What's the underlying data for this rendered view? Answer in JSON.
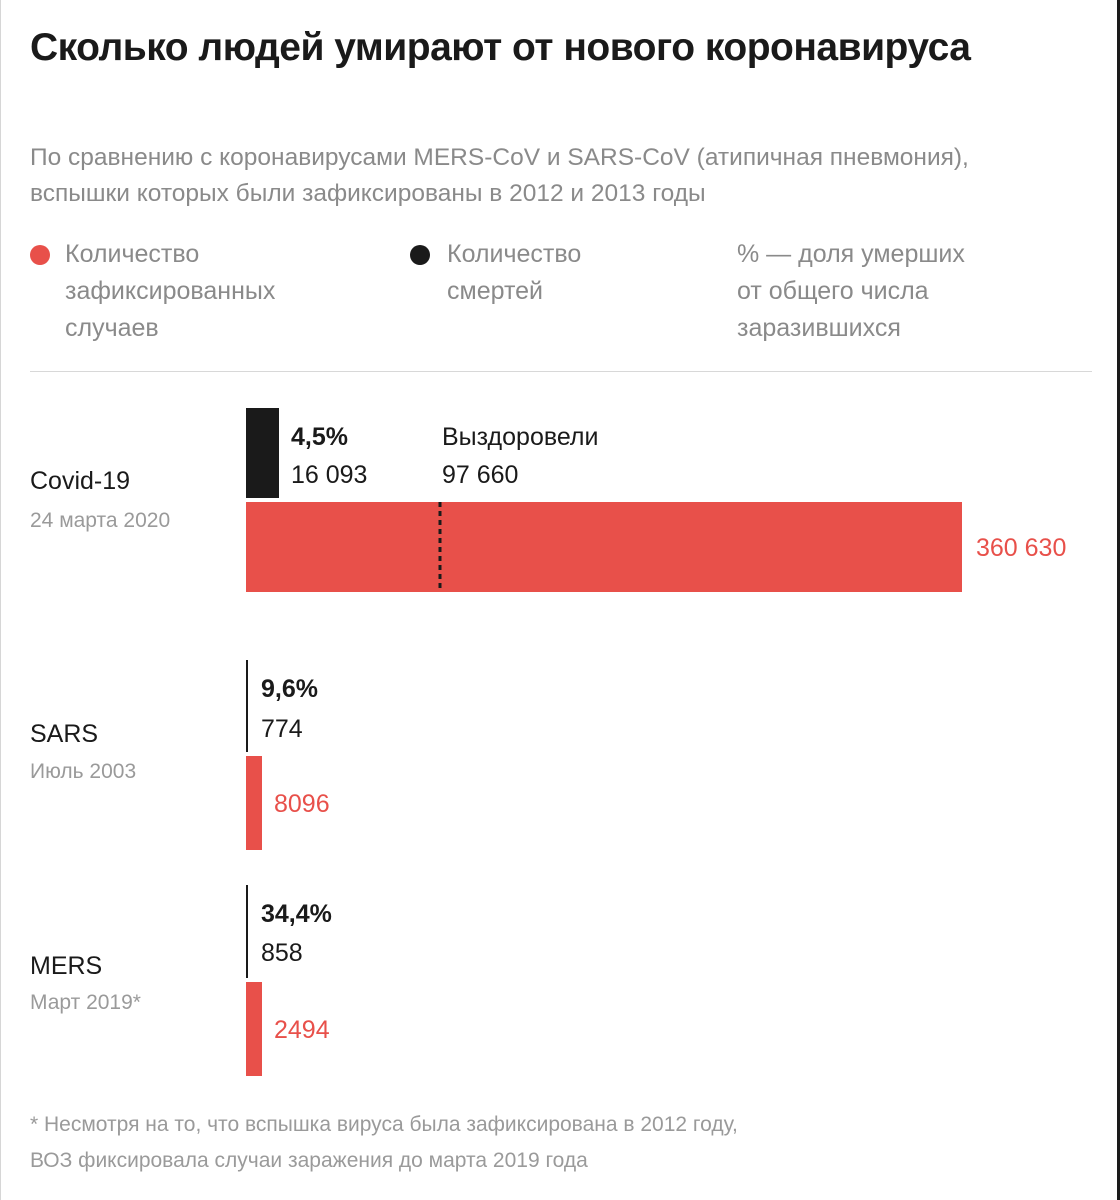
{
  "title": "Сколько людей умирают от нового коронавируса",
  "subtitle": "По сравнению с коронавирусами MERS-CoV и SARS-CoV (атипичная пневмония), вспышки которых были зафиксированы в 2012 и 2013 годы",
  "legend": [
    {
      "label": "Количество\nзафиксированных\nслучаев",
      "color": "#e8504a",
      "marker": "dot"
    },
    {
      "label": "Количество\nсмертей",
      "color": "#1a1a1a",
      "marker": "dot"
    },
    {
      "label": "% — доля умерших\nот общего числа\nзаразившихся",
      "color": null,
      "marker": "none"
    }
  ],
  "chart_data": {
    "type": "bar",
    "orientation": "horizontal",
    "categories": [
      "Covid-19",
      "SARS",
      "MERS"
    ],
    "dates": [
      "24 марта 2020",
      "Июль 2003",
      "Март 2019*"
    ],
    "series": [
      {
        "name": "Количество зафиксированных случаев",
        "color": "#e8504a",
        "values": [
          360630,
          8096,
          2494
        ]
      },
      {
        "name": "Количество смертей",
        "color": "#1a1a1a",
        "values": [
          16093,
          774,
          858
        ]
      }
    ],
    "value_labels": {
      "cases": [
        "360 630",
        "8096",
        "2494"
      ],
      "deaths": [
        "16 093",
        "774",
        "858"
      ],
      "death_rate": [
        "4,5%",
        "9,6%",
        "34,4%"
      ]
    },
    "recovered": {
      "category": "Covid-19",
      "label": "Выздоровели",
      "value": 97660,
      "value_label": "97 660"
    },
    "xlim": [
      0,
      360630
    ],
    "axis_visible": false,
    "grid": false
  },
  "footnote": "* Несмотря на то, что вспышка вируса была зафиксирована в 2012 году,\nВОЗ фиксировала случаи заражения до марта 2019 года"
}
